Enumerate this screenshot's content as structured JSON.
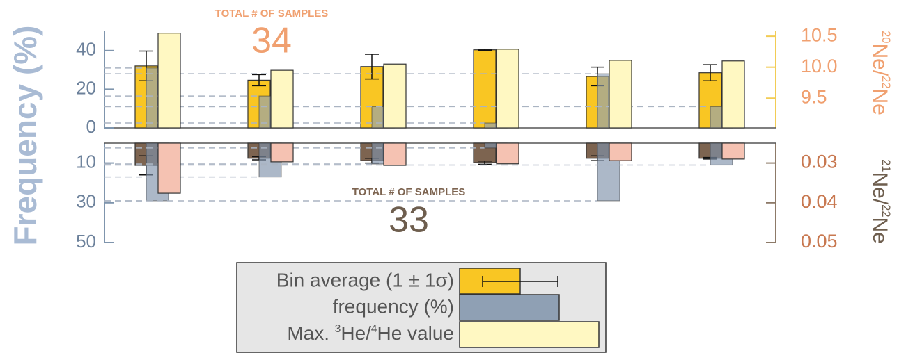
{
  "chart_data": [
    {
      "type": "bar",
      "ylabel": "Frequency (%)",
      "annotation": {
        "label": "TOTAL # OF SAMPLES",
        "count": 34
      },
      "categories": [
        null,
        null,
        null,
        null,
        null,
        null
      ],
      "ylim": [
        0,
        50
      ],
      "yticks": [
        0,
        20,
        40
      ],
      "y2lim": [
        9.02,
        10.58
      ],
      "y2ticks": [
        9.5,
        {
          "value": 10,
          "label": "10.0"
        },
        10.5
      ],
      "y2label": [
        {
          "text": "20",
          "sup": true
        },
        {
          "text": "Ne/"
        },
        {
          "text": "22",
          "sup": true
        },
        {
          "text": "Ne"
        }
      ],
      "axis_color": "#7f95ad",
      "y2_axis_color": "#f2cc55",
      "y2_label_color": "#f0a070",
      "series": [
        {
          "name": "Bin average (1 ± 1σ)",
          "color": "#f9c623",
          "axis": "y2",
          "values": [
            10.02,
            9.79,
            10.01,
            10.28,
            9.85,
            9.91
          ],
          "errors": [
            0.24,
            0.09,
            0.2,
            0.01,
            0.15,
            0.13
          ]
        },
        {
          "name": "frequency (%)",
          "color": "#8fa0b4",
          "values": [
            31,
            16.5,
            11,
            2.5,
            28,
            11
          ]
        },
        {
          "name": [
            {
              "text": "Max. "
            },
            {
              "text": "3",
              "sup": true
            },
            {
              "text": "He/"
            },
            {
              "text": "4",
              "sup": true
            },
            {
              "text": "He value"
            }
          ],
          "color": "#fff8c2",
          "axis": "y2",
          "values": [
            10.55,
            9.95,
            10.05,
            10.29,
            10.11,
            10.1
          ]
        }
      ]
    },
    {
      "type": "bar",
      "inverted": true,
      "annotation": {
        "label": "TOTAL # OF SAMPLES",
        "count": 33
      },
      "categories": [
        null,
        null,
        null,
        null,
        null,
        null
      ],
      "ylim": [
        0,
        50
      ],
      "yticks": [
        10,
        30,
        50
      ],
      "y2lim": [
        0.025,
        0.05
      ],
      "y2ticks": [
        0.03,
        0.04,
        0.05
      ],
      "y2label": [
        {
          "text": "21",
          "sup": true
        },
        {
          "text": "Ne/"
        },
        {
          "text": "22",
          "sup": true
        },
        {
          "text": "Ne"
        }
      ],
      "axis_color": "#7f95ad",
      "y2_axis_color": "#8d7a68",
      "y2_label_color": "#c87850",
      "series": [
        {
          "color": "#7d6450",
          "axis": "y2",
          "values": [
            0.0306,
            0.0288,
            0.0294,
            0.0299,
            0.0288,
            0.0288
          ],
          "errors": [
            0.0024,
            0.0004,
            0.0006,
            0.0004,
            0.0006,
            0.0002
          ]
        },
        {
          "color": "#7f92aa",
          "values": [
            29,
            17,
            10.5,
            2.4,
            29,
            11
          ]
        },
        {
          "color": "#f5c2b2",
          "axis": "y2",
          "values": [
            0.0376,
            0.0297,
            0.0306,
            0.0302,
            0.0294,
            0.029
          ]
        }
      ]
    }
  ]
}
